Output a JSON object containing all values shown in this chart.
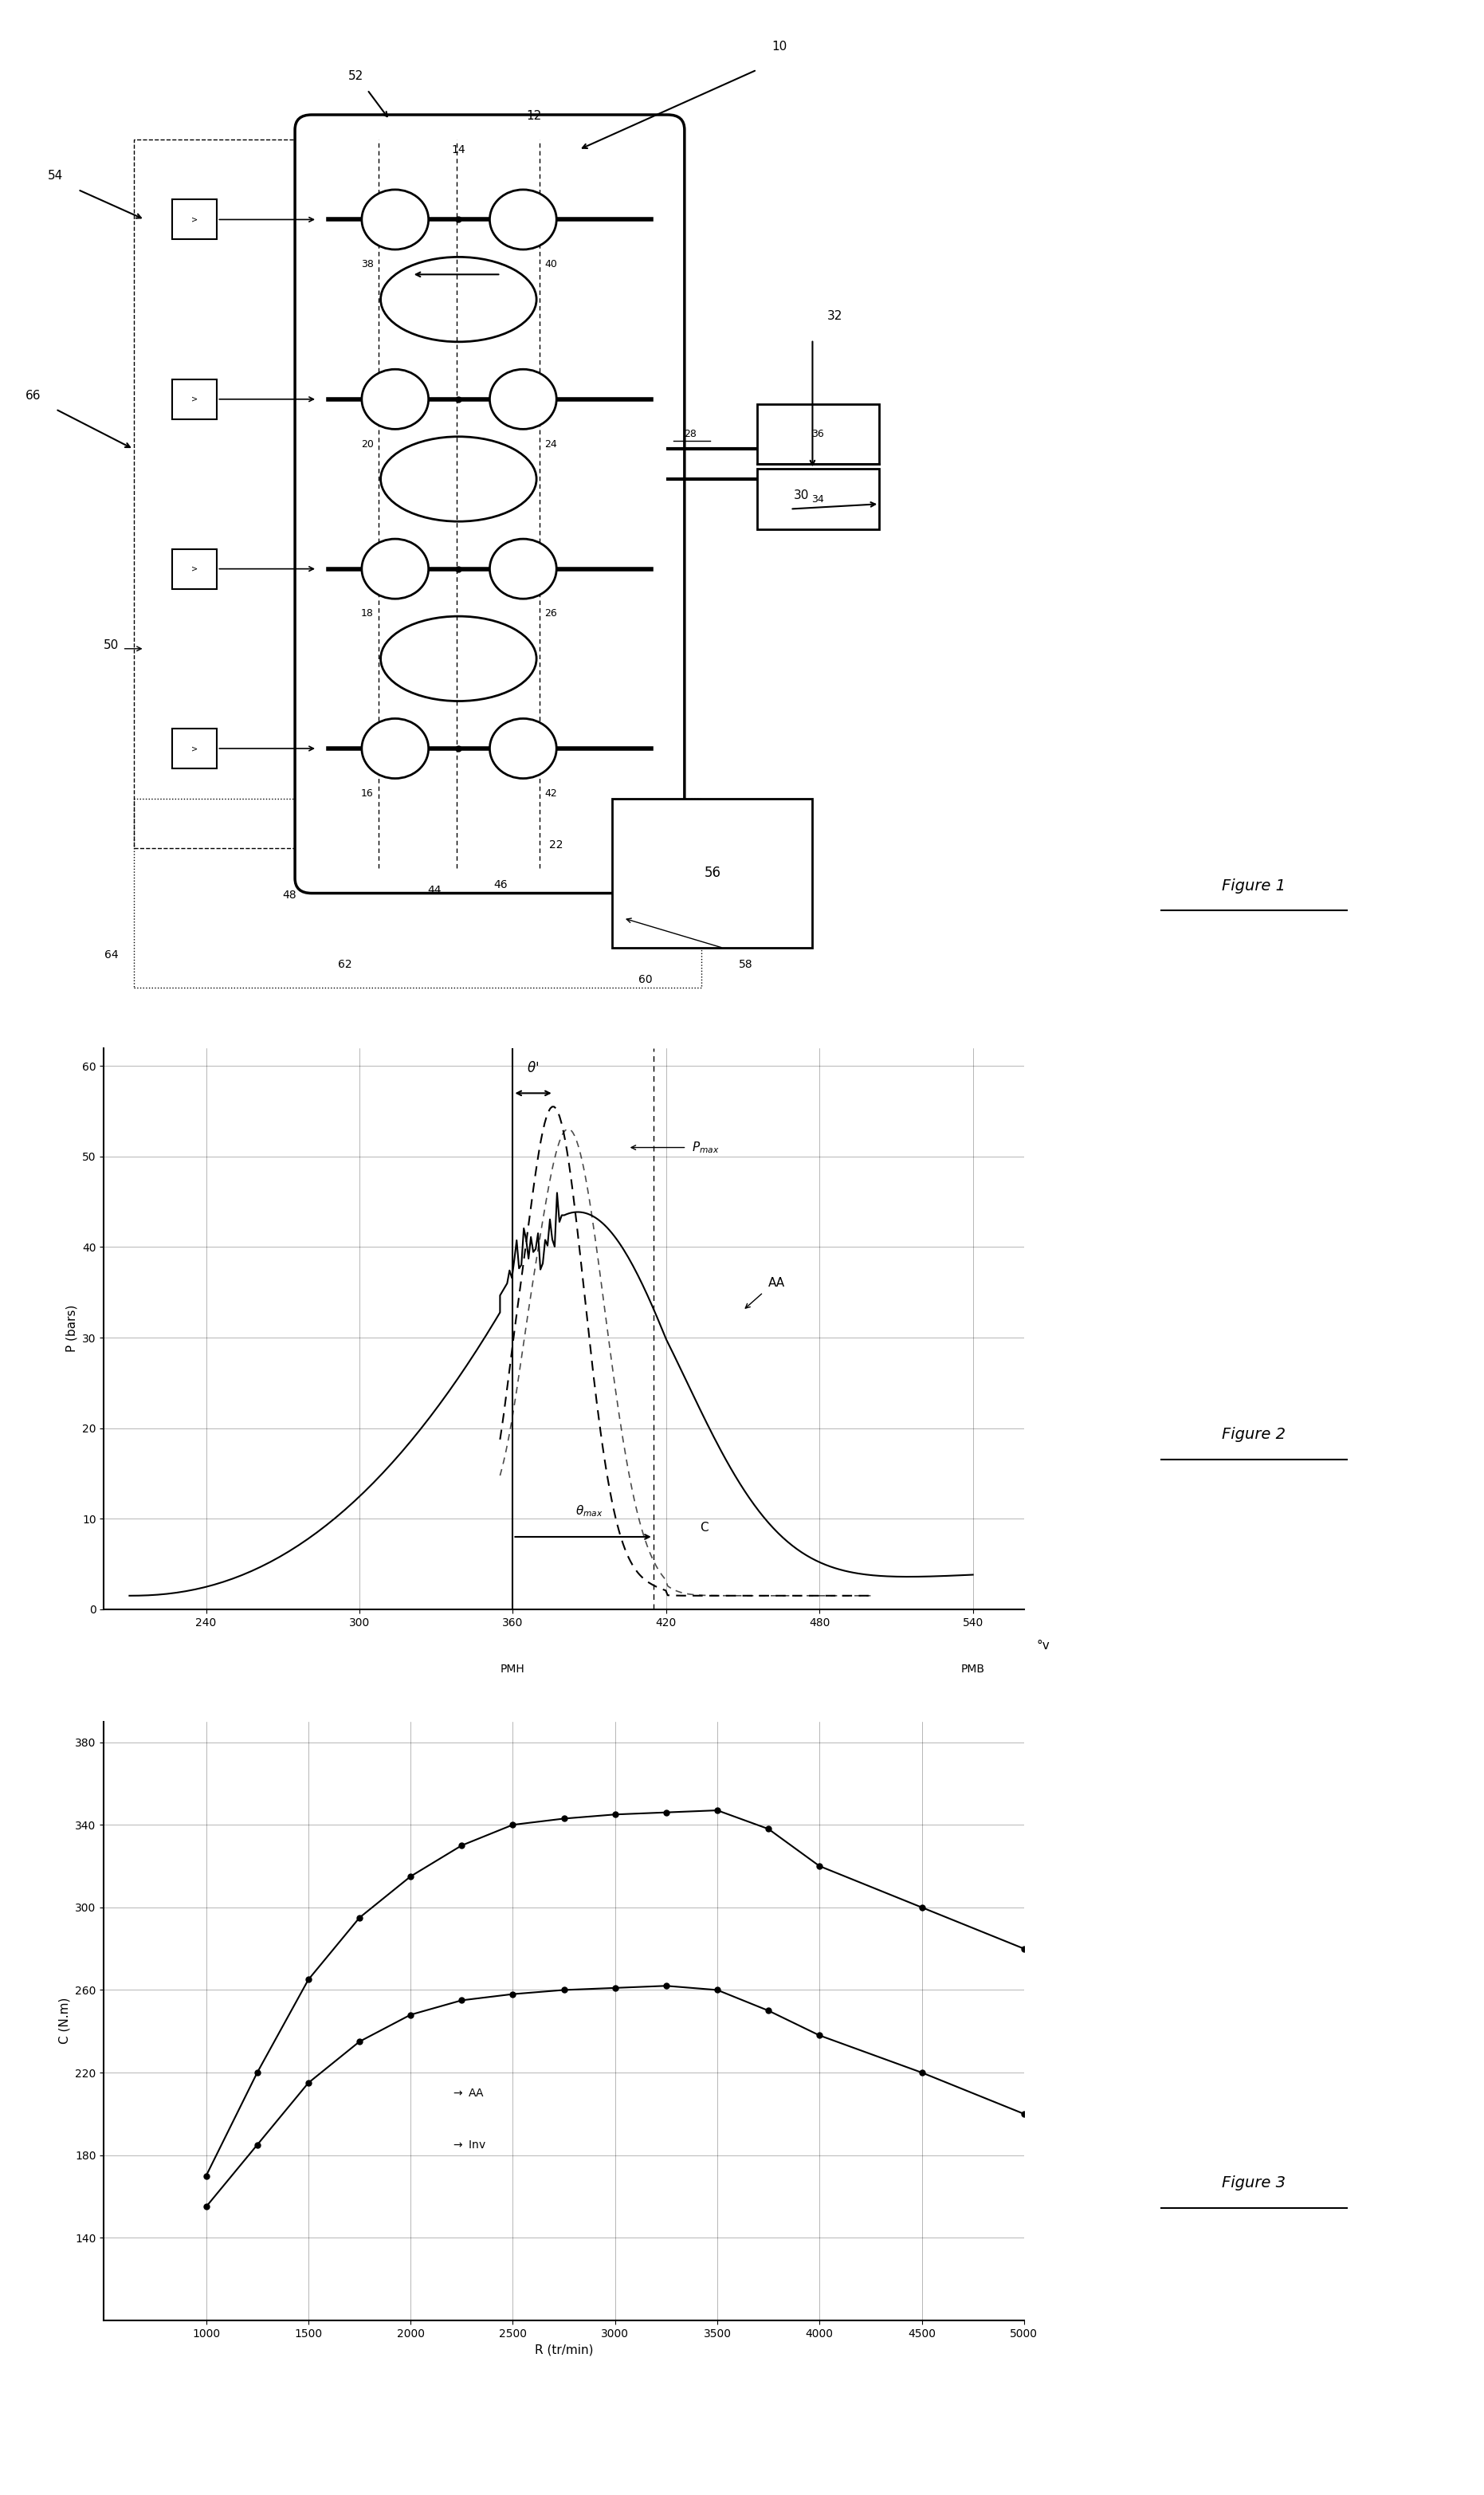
{
  "fig_label_fontsize": 14,
  "annotation_fontsize": 11,
  "axis_label_fontsize": 11,
  "tick_fontsize": 10,
  "background_color": "#ffffff",
  "figure2": {
    "xlabel": "°v",
    "ylabel": "P (bars)",
    "xlim": [
      200,
      560
    ],
    "ylim": [
      0,
      62
    ],
    "xticks": [
      240,
      300,
      360,
      420,
      480,
      540
    ],
    "yticks": [
      0,
      10,
      20,
      30,
      40,
      50,
      60
    ],
    "xlabel_extra": [
      "PMH",
      "PMB"
    ],
    "xlabel_extra_pos": [
      360,
      540
    ],
    "pmh_x": 360,
    "pmax_label": "P_max",
    "pmax_y": 53,
    "pmax_x": 405,
    "theta_max_x": 415,
    "theta_prime_x": 370,
    "curve_AA_label": "AA",
    "curve_C_label": "C"
  },
  "figure3": {
    "xlabel": "R (tr/min)",
    "ylabel": "C (N.m)",
    "xlim": [
      500,
      5000
    ],
    "ylim": [
      100,
      390
    ],
    "xticks": [
      1000,
      1500,
      2000,
      2500,
      3000,
      3500,
      4000,
      4500,
      5000
    ],
    "yticks": [
      140,
      180,
      220,
      260,
      300,
      340,
      380
    ],
    "label_AA": "AA",
    "label_Inv": "Inv",
    "AA_x": [
      1000,
      1250,
      1500,
      1750,
      2000,
      2250,
      2500,
      2750,
      3000,
      3250,
      3500,
      3750,
      4000,
      4500,
      5000
    ],
    "AA_y": [
      170,
      220,
      265,
      295,
      315,
      330,
      340,
      343,
      345,
      346,
      347,
      338,
      320,
      300,
      280
    ],
    "Inv_x": [
      1000,
      1250,
      1500,
      1750,
      2000,
      2250,
      2500,
      2750,
      3000,
      3250,
      3500,
      3750,
      4000,
      4500,
      5000
    ],
    "Inv_y": [
      155,
      185,
      215,
      235,
      248,
      255,
      258,
      260,
      261,
      262,
      260,
      250,
      238,
      220,
      200
    ]
  }
}
